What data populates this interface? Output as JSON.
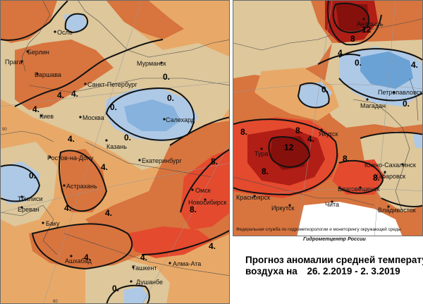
{
  "colors": {
    "cold_strong": "#6aa2d6",
    "cold": "#aec9e6",
    "neutral": "#ddc79b",
    "warm_light": "#e8a968",
    "warm": "#d8743e",
    "hot": "#e44a2e",
    "very_hot": "#b01e16",
    "extreme": "#86100c"
  },
  "left_map": {
    "cities": [
      "Осло",
      "Берлин",
      "Прага",
      "Варшава",
      "Мурманск",
      "Санкт-Петербург",
      "Киев",
      "Москва",
      "Казань",
      "Салехард",
      "Ростов-на-Дону",
      "Екатеринбург",
      "Астрахань",
      "Тбилиси",
      "Ереван",
      "Омск",
      "Новосибирск",
      "Баку",
      "Ашхабад",
      "Ташкент",
      "Алма-Ата",
      "Душанбе"
    ],
    "isolines": [
      "4.",
      "4.",
      "4.",
      "0.",
      "0.",
      "0.",
      "0.",
      "4.",
      "0.",
      "4.",
      "8.",
      "8.",
      "4.",
      "4.",
      "4.",
      "4.",
      "4.",
      "0."
    ],
    "edge_labels": [
      "60",
      "90"
    ]
  },
  "right_map": {
    "cities": [
      "Анадырь",
      "Петропавловск-Камчатский",
      "Магадан",
      "Якутск",
      "Тура",
      "Южно-Сахалинск",
      "Хабаровск",
      "Благовещенск",
      "Красноярск",
      "Иркутск",
      "Чита",
      "Владивосток"
    ],
    "isolines": [
      "12",
      "8",
      "4.",
      "0.",
      "0.",
      "4.",
      "0.",
      "8.",
      "8.",
      "8.",
      "12",
      "4.",
      "8.",
      "8."
    ]
  },
  "credits": {
    "agency": "Федеральная служба по гидрометеорологии и мониторингу окружающей среды",
    "center": "Гидрометцентр России"
  },
  "title": {
    "line1": "Прогноз аномалии средней температуры",
    "line2_prefix": "воздуха на",
    "date_from": "26. 2.2019",
    "separator": "-",
    "date_to": "2. 3.2019"
  }
}
